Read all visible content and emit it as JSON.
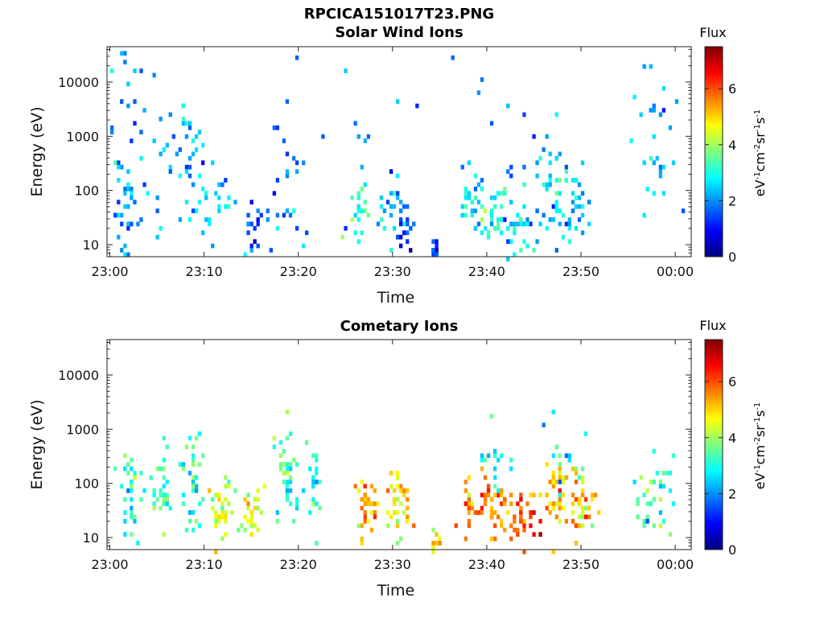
{
  "figure": {
    "title": "RPCICA151017T23.PNG"
  },
  "colorbar_label": {
    "title": "Flux",
    "units_html": "eV<sup>-1</sup>cm<sup>-2</sup>sr<sup>-1</sup>s<sup>-1</sup>"
  },
  "colormap": [
    "#00007f",
    "#0000ff",
    "#007fff",
    "#00ffff",
    "#7fff7f",
    "#ffff00",
    "#ff7f00",
    "#ff0000",
    "#7f0000"
  ],
  "chart_data": [
    {
      "type": "heatmap",
      "title": "Solar Wind Ions",
      "xlabel": "Time",
      "ylabel": "Energy (eV)",
      "x_tick_labels": [
        "23:00",
        "23:10",
        "23:20",
        "23:30",
        "23:40",
        "23:50",
        "00:00"
      ],
      "x_ticks_min": [
        0,
        10,
        20,
        30,
        40,
        50,
        60
      ],
      "xlim_min": [
        -0.3,
        61.7
      ],
      "y_scale": "log",
      "y_tick_labels": [
        "10",
        "100",
        "1000",
        "10000"
      ],
      "y_ticks": [
        10,
        100,
        1000,
        10000
      ],
      "ylim": [
        6,
        45000
      ],
      "colorbar": {
        "label": "Flux",
        "range": [
          0,
          7.5
        ],
        "ticks": [
          "0",
          "2",
          "4",
          "6"
        ]
      },
      "grid": false,
      "clusters": [
        {
          "t": 1.5,
          "e": 50,
          "dt": 0.7,
          "de": 0.4,
          "f": 2.0,
          "n": 25
        },
        {
          "t": 1.5,
          "e": 2000,
          "dt": 1.2,
          "de": 1.2,
          "f": 2.0,
          "n": 30
        },
        {
          "t": 5.5,
          "e": 400,
          "dt": 1.5,
          "de": 0.8,
          "f": 2.3,
          "n": 25
        },
        {
          "t": 8.5,
          "e": 250,
          "dt": 1.2,
          "de": 0.8,
          "f": 2.2,
          "n": 25
        },
        {
          "t": 11.5,
          "e": 80,
          "dt": 1.0,
          "de": 0.4,
          "f": 2.5,
          "n": 20
        },
        {
          "t": 15.0,
          "e": 25,
          "dt": 0.7,
          "de": 0.25,
          "f": 1.6,
          "n": 20
        },
        {
          "t": 18.5,
          "e": 200,
          "dt": 1.2,
          "de": 0.8,
          "f": 1.8,
          "n": 25
        },
        {
          "t": 26.5,
          "e": 40,
          "dt": 0.6,
          "de": 0.25,
          "f": 3.2,
          "n": 20
        },
        {
          "t": 30.0,
          "e": 50,
          "dt": 0.7,
          "de": 0.3,
          "f": 2.2,
          "n": 28
        },
        {
          "t": 31.0,
          "e": 20,
          "dt": 0.5,
          "de": 0.2,
          "f": 1.3,
          "n": 15
        },
        {
          "t": 34.4,
          "e": 9,
          "dt": 0.2,
          "de": 0.18,
          "f": 1.1,
          "n": 18
        },
        {
          "t": 38.0,
          "e": 60,
          "dt": 0.6,
          "de": 0.35,
          "f": 2.6,
          "n": 20
        },
        {
          "t": 40.5,
          "e": 40,
          "dt": 0.8,
          "de": 0.3,
          "f": 2.9,
          "n": 30
        },
        {
          "t": 43.5,
          "e": 25,
          "dt": 0.7,
          "de": 0.3,
          "f": 2.8,
          "n": 25
        },
        {
          "t": 47.0,
          "e": 100,
          "dt": 1.0,
          "de": 0.45,
          "f": 2.4,
          "n": 40
        },
        {
          "t": 49.5,
          "e": 50,
          "dt": 0.9,
          "de": 0.35,
          "f": 2.2,
          "n": 30
        },
        {
          "t": 58.0,
          "e": 400,
          "dt": 1.5,
          "de": 1.0,
          "f": 2.3,
          "n": 30
        },
        {
          "t": 41.0,
          "e": 1500,
          "dt": 3.0,
          "de": 1.2,
          "f": 1.9,
          "n": 20
        },
        {
          "t": 26.0,
          "e": 600,
          "dt": 3.0,
          "de": 1.2,
          "f": 2.2,
          "n": 12
        }
      ]
    },
    {
      "type": "heatmap",
      "title": "Cometary Ions",
      "xlabel": "Time",
      "ylabel": "Energy (eV)",
      "x_tick_labels": [
        "23:00",
        "23:10",
        "23:20",
        "23:30",
        "23:40",
        "23:50",
        "00:00"
      ],
      "x_ticks_min": [
        0,
        10,
        20,
        30,
        40,
        50,
        60
      ],
      "xlim_min": [
        -0.3,
        61.7
      ],
      "y_scale": "log",
      "y_tick_labels": [
        "10",
        "100",
        "1000",
        "10000"
      ],
      "y_ticks": [
        10,
        100,
        1000,
        10000
      ],
      "ylim": [
        6,
        45000
      ],
      "colorbar": {
        "label": "Flux",
        "range": [
          0,
          7.5
        ],
        "ticks": [
          "0",
          "2",
          "4",
          "6"
        ]
      },
      "grid": false,
      "clusters": [
        {
          "t": 2.0,
          "e": 80,
          "dt": 0.6,
          "de": 0.4,
          "f": 3.4,
          "n": 35
        },
        {
          "t": 5.0,
          "e": 80,
          "dt": 0.6,
          "de": 0.4,
          "f": 3.2,
          "n": 30
        },
        {
          "t": 8.5,
          "e": 120,
          "dt": 0.6,
          "de": 0.45,
          "f": 3.1,
          "n": 35
        },
        {
          "t": 11.5,
          "e": 30,
          "dt": 0.6,
          "de": 0.3,
          "f": 4.5,
          "n": 35
        },
        {
          "t": 15.0,
          "e": 30,
          "dt": 0.7,
          "de": 0.25,
          "f": 4.3,
          "n": 30
        },
        {
          "t": 18.5,
          "e": 150,
          "dt": 0.6,
          "de": 0.45,
          "f": 3.4,
          "n": 35
        },
        {
          "t": 21.5,
          "e": 80,
          "dt": 0.6,
          "de": 0.4,
          "f": 3.1,
          "n": 25
        },
        {
          "t": 27.0,
          "e": 40,
          "dt": 0.6,
          "de": 0.25,
          "f": 5.4,
          "n": 30
        },
        {
          "t": 30.5,
          "e": 40,
          "dt": 0.6,
          "de": 0.3,
          "f": 4.9,
          "n": 35
        },
        {
          "t": 34.5,
          "e": 10,
          "dt": 0.2,
          "de": 0.15,
          "f": 4.6,
          "n": 10
        },
        {
          "t": 38.0,
          "e": 35,
          "dt": 0.5,
          "de": 0.25,
          "f": 5.6,
          "n": 20
        },
        {
          "t": 40.5,
          "e": 40,
          "dt": 0.9,
          "de": 0.25,
          "f": 5.6,
          "n": 40
        },
        {
          "t": 43.5,
          "e": 25,
          "dt": 0.8,
          "de": 0.25,
          "f": 5.9,
          "n": 35
        },
        {
          "t": 47.0,
          "e": 60,
          "dt": 1.0,
          "de": 0.4,
          "f": 5.1,
          "n": 45
        },
        {
          "t": 50.0,
          "e": 40,
          "dt": 0.8,
          "de": 0.3,
          "f": 5.0,
          "n": 35
        },
        {
          "t": 56.5,
          "e": 60,
          "dt": 0.5,
          "de": 0.35,
          "f": 3.5,
          "n": 15
        },
        {
          "t": 58.5,
          "e": 80,
          "dt": 0.6,
          "de": 0.45,
          "f": 3.2,
          "n": 20
        },
        {
          "t": 41.0,
          "e": 300,
          "dt": 1.0,
          "de": 0.4,
          "f": 3.0,
          "n": 15
        },
        {
          "t": 48.0,
          "e": 300,
          "dt": 1.5,
          "de": 0.4,
          "f": 3.0,
          "n": 15
        }
      ]
    }
  ]
}
